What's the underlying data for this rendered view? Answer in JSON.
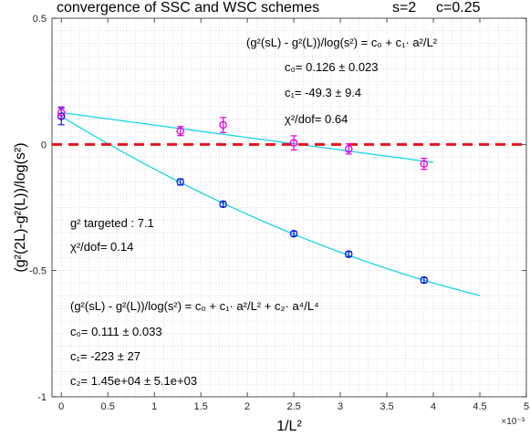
{
  "header": {
    "title": "convergence of SSC and WSC schemes",
    "s_label": "s=2",
    "c_label": "c=0.25"
  },
  "colors": {
    "fit": "#19d5e8",
    "ssc_marker": "#0b1fd6",
    "wsc_marker": "#e000e0",
    "zero_line": "#e8141c",
    "grid": "#c9c9c9"
  },
  "annotations": {
    "wsc_formula": "(g²(sL) - g²(L))/log(s²) = c₀ + c₁· a²/L²",
    "wsc_c0": "c₀= 0.126 ± 0.023",
    "wsc_c1": "c₁= -49.3 ± 9.4",
    "wsc_chi2": "χ²/dof= 0.64",
    "targeted": "g² targeted : 7.1",
    "ssc_chi2": "χ²/dof= 0.14",
    "ssc_formula": "(g²(sL) - g²(L))/log(s²) = c₀ + c₁· a²/L² + c₂· a⁴/L⁴",
    "ssc_c0": "c₀= 0.111 ± 0.033",
    "ssc_c1": "c₁= -223 ± 27",
    "ssc_c2": "c₂= 1.45e+04 ± 5.1e+03"
  },
  "chart_data": {
    "type": "scatter",
    "xlabel": "1/L²",
    "ylabel": "(g²(2L)-g²(L))/log(s²)",
    "x_exponent_label": "×10⁻³",
    "xlim": [
      -0.0001,
      0.005
    ],
    "ylim": [
      -1,
      0.5
    ],
    "x_ticks": [
      0,
      0.0005,
      0.001,
      0.0015,
      0.002,
      0.0025,
      0.003,
      0.0035,
      0.004,
      0.0045,
      0.005
    ],
    "x_tick_labels": [
      "0",
      "0.5",
      "1",
      "1.5",
      "2",
      "2.5",
      "3",
      "3.5",
      "4",
      "4.5",
      "5"
    ],
    "y_ticks": [
      -1,
      -0.5,
      0,
      0.5
    ],
    "y_tick_labels": [
      "-1",
      "-0.5",
      "0",
      "0.5"
    ],
    "grid": true,
    "zero_line": 0,
    "series": [
      {
        "marker": "circle",
        "color": "#0b1fd6",
        "x": [
          0,
          0.00128,
          0.00174,
          0.0025,
          0.00309,
          0.0039
        ],
        "y": [
          0.111,
          -0.149,
          -0.237,
          -0.354,
          -0.435,
          -0.538
        ],
        "yerr": [
          0.033,
          0.012,
          0.01,
          0.01,
          0.01,
          0.01
        ],
        "fit": {
          "c0": 0.111,
          "c1": -223,
          "c2": 14500,
          "x_range": [
            0,
            0.0045
          ]
        }
      },
      {
        "marker": "circle",
        "color": "#e000e0",
        "x": [
          0,
          0.00128,
          0.00174,
          0.0025,
          0.00309,
          0.0039
        ],
        "y": [
          0.126,
          0.053,
          0.077,
          0.006,
          -0.018,
          -0.077
        ],
        "yerr": [
          0.023,
          0.018,
          0.03,
          0.028,
          0.02,
          0.022
        ],
        "fit": {
          "c0": 0.126,
          "c1": -49.3,
          "c2": 0,
          "x_range": [
            0,
            0.004
          ]
        }
      }
    ]
  }
}
